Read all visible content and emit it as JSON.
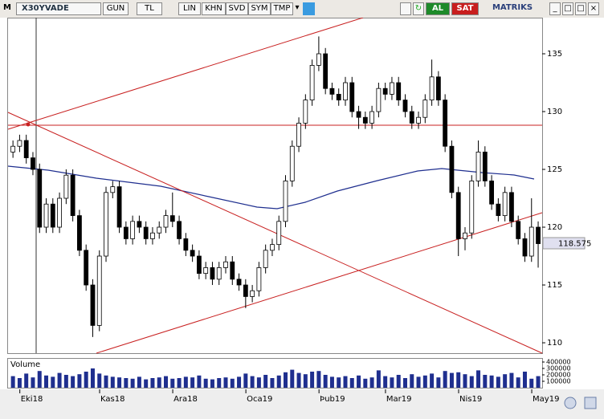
{
  "toolbar": {
    "logo": "M",
    "symbol": "X30YVADE",
    "buttons": [
      "GUN",
      "TL",
      "LIN",
      "KHN",
      "SVD",
      "SYM",
      "TMP"
    ],
    "buy": "AL",
    "sell": "SAT",
    "brand": "MATRIKS"
  },
  "chart_data": {
    "type": "candlestick",
    "volume_label": "Volume",
    "up_color": "#ffffff",
    "down_color": "#000000",
    "volume_color": "#1f2f8f",
    "categories": [
      null,
      null,
      "Eki18",
      null,
      null,
      null,
      null,
      null,
      null,
      null,
      null,
      null,
      null,
      null,
      "Kas18",
      null,
      null,
      null,
      null,
      null,
      null,
      null,
      null,
      null,
      null,
      "Ara18",
      null,
      null,
      null,
      null,
      null,
      null,
      null,
      null,
      null,
      null,
      "Oca19",
      null,
      null,
      null,
      null,
      null,
      null,
      null,
      null,
      null,
      null,
      "Þub19",
      null,
      null,
      null,
      null,
      null,
      null,
      null,
      null,
      null,
      "Mar19",
      null,
      null,
      null,
      null,
      null,
      null,
      null,
      null,
      null,
      null,
      "Nis19",
      null,
      null,
      null,
      null,
      null,
      null,
      null,
      null,
      null,
      null,
      "May19"
    ],
    "open": [
      126.5,
      127,
      127.5,
      126,
      125,
      120,
      122,
      120,
      122.5,
      124.5,
      121,
      118,
      115,
      111.5,
      117.5,
      123,
      123.5,
      120,
      119,
      120.5,
      120,
      119,
      119.5,
      120,
      121,
      120.5,
      119,
      118,
      117.5,
      116,
      116.5,
      115.5,
      116.5,
      117,
      115.5,
      115,
      114,
      114.5,
      116.5,
      118,
      118.5,
      120.5,
      124,
      127,
      129,
      131,
      134,
      135,
      132,
      131.5,
      131,
      132.5,
      130,
      129.5,
      129,
      130,
      132,
      131.5,
      132.5,
      131,
      130,
      129,
      129.5,
      131,
      133,
      131,
      127,
      123,
      119,
      119.5,
      124,
      126.5,
      124,
      122,
      121,
      123,
      120.5,
      119,
      117.5,
      120
    ],
    "high": [
      127.5,
      128,
      128,
      126.5,
      125.5,
      122.5,
      122.5,
      123,
      125,
      125,
      121.5,
      118.5,
      115.5,
      118,
      123.5,
      124,
      124,
      120.5,
      121,
      121,
      120.5,
      120,
      120.5,
      121.5,
      123,
      121,
      119.5,
      118.5,
      118,
      117,
      117,
      117,
      117.5,
      117.5,
      116,
      115.5,
      115,
      117,
      118.5,
      119,
      121,
      124.5,
      127.5,
      129.5,
      131.5,
      134.5,
      136.5,
      135.5,
      132.5,
      132,
      133,
      133,
      130.5,
      130,
      130.5,
      132.5,
      132.5,
      133,
      133,
      131.5,
      130.5,
      130,
      131.5,
      134.5,
      133.5,
      131.5,
      127.5,
      123.5,
      120,
      124.5,
      127.5,
      127,
      124.5,
      122.5,
      123.5,
      123.5,
      121,
      119.5,
      122.5,
      120.5
    ],
    "low": [
      126,
      126.5,
      125.5,
      124.5,
      119.5,
      119.5,
      119.5,
      119.5,
      122,
      120.5,
      117.5,
      114.5,
      110.5,
      111,
      117,
      122.5,
      119.5,
      118.5,
      118.5,
      119.5,
      118.5,
      118.5,
      119,
      119.5,
      120,
      118.5,
      117.5,
      117,
      115.5,
      115.5,
      115,
      115,
      116,
      115,
      114.5,
      113,
      113.5,
      114,
      116,
      117.5,
      118,
      120,
      123.5,
      126.5,
      128.5,
      130.5,
      133.5,
      131.5,
      131,
      130.5,
      130.5,
      129.5,
      128.5,
      128.5,
      128.5,
      129.5,
      131,
      131,
      130.5,
      129.5,
      128.5,
      128.5,
      129,
      130.5,
      130.5,
      126.5,
      122.5,
      117.5,
      118,
      119,
      123.5,
      123.5,
      121.5,
      120.5,
      120.5,
      120,
      118.5,
      117,
      117,
      116.5
    ],
    "close": [
      127,
      127.5,
      126,
      125,
      120,
      122,
      120,
      122.5,
      124.5,
      121,
      118,
      115,
      111.5,
      117.5,
      123,
      123.5,
      120,
      119,
      120.5,
      120,
      119,
      119.5,
      120,
      121,
      120.5,
      119,
      118,
      117.5,
      116,
      116.5,
      115.5,
      116.5,
      117,
      115.5,
      115,
      114,
      114.5,
      116.5,
      118,
      118.5,
      120.5,
      124,
      127,
      129,
      131,
      134,
      135,
      132,
      131.5,
      131,
      132.5,
      130,
      129.5,
      129,
      130,
      132,
      131.5,
      132.5,
      131,
      130,
      129,
      129.5,
      131,
      133,
      131,
      127,
      123,
      119,
      119.5,
      124,
      126.5,
      124,
      122,
      121,
      123,
      120.5,
      119,
      117.5,
      120,
      118.575
    ],
    "volume": [
      180000,
      150000,
      220000,
      160000,
      260000,
      190000,
      170000,
      230000,
      200000,
      180000,
      210000,
      250000,
      300000,
      220000,
      190000,
      170000,
      160000,
      150000,
      140000,
      170000,
      130000,
      150000,
      160000,
      180000,
      140000,
      150000,
      170000,
      160000,
      190000,
      140000,
      130000,
      150000,
      160000,
      140000,
      170000,
      220000,
      180000,
      160000,
      200000,
      150000,
      190000,
      240000,
      280000,
      230000,
      210000,
      250000,
      260000,
      200000,
      170000,
      160000,
      180000,
      150000,
      190000,
      140000,
      160000,
      270000,
      180000,
      160000,
      200000,
      150000,
      210000,
      170000,
      190000,
      220000,
      160000,
      260000,
      230000,
      240000,
      210000,
      180000,
      270000,
      200000,
      190000,
      170000,
      210000,
      230000,
      160000,
      250000,
      140000,
      180000
    ],
    "ylim": [
      109.1,
      138.125
    ],
    "yticks": [
      110,
      115,
      120,
      125,
      130,
      135
    ],
    "volume_ylim": [
      0,
      450000
    ],
    "volume_yticks": [
      100000,
      200000,
      300000,
      400000
    ]
  }
}
